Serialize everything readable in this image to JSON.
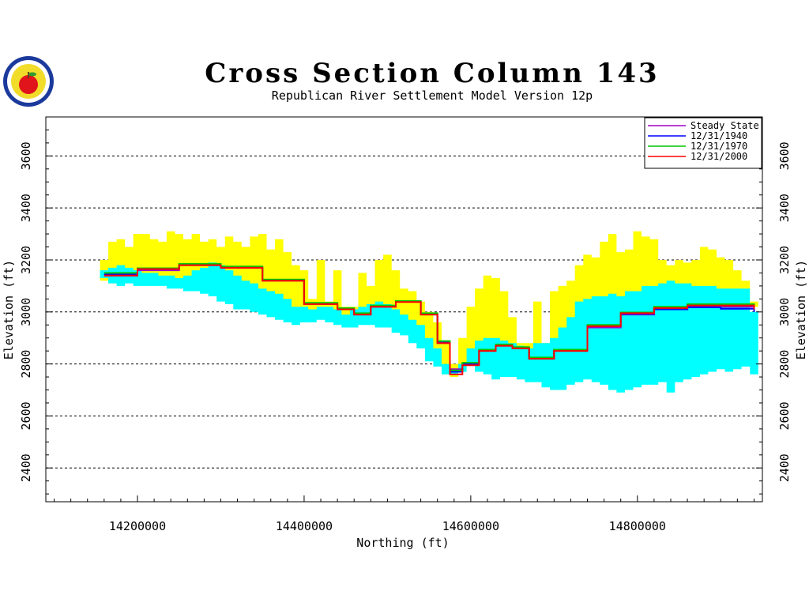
{
  "chart_data": {
    "type": "area",
    "title": "Cross Section Column 143",
    "subtitle": "Republican River Settlement Model Version 12p",
    "xlabel": "Northing (ft)",
    "ylabel": "Elevation (ft)",
    "xlim": [
      14090000,
      14950000
    ],
    "ylim": [
      2270,
      3750
    ],
    "x_ticks": [
      14200000,
      14400000,
      14600000,
      14800000
    ],
    "x_tick_labels": [
      "14200000",
      "14400000",
      "14600000",
      "14800000"
    ],
    "y_ticks": [
      2400,
      2600,
      2800,
      3000,
      3200,
      3400,
      3600
    ],
    "y_tick_labels": [
      "2400",
      "2600",
      "2800",
      "3000",
      "3200",
      "3400",
      "3600"
    ],
    "grid": "dashed horizontal",
    "legend_position": "top-right",
    "layers": [
      {
        "name": "Upper layer",
        "color": "#ffff00",
        "x": [
          14160000,
          14170000,
          14180000,
          14190000,
          14200000,
          14210000,
          14220000,
          14230000,
          14240000,
          14250000,
          14260000,
          14270000,
          14280000,
          14290000,
          14300000,
          14310000,
          14320000,
          14330000,
          14340000,
          14350000,
          14360000,
          14370000,
          14380000,
          14390000,
          14400000,
          14410000,
          14420000,
          14430000,
          14440000,
          14450000,
          14460000,
          14470000,
          14480000,
          14490000,
          14500000,
          14510000,
          14520000,
          14530000,
          14540000,
          14550000,
          14560000,
          14570000,
          14580000,
          14590000,
          14600000,
          14610000,
          14620000,
          14630000,
          14640000,
          14650000,
          14660000,
          14670000,
          14680000,
          14690000,
          14700000,
          14710000,
          14720000,
          14730000,
          14740000,
          14750000,
          14760000,
          14770000,
          14780000,
          14790000,
          14800000,
          14810000,
          14820000,
          14830000,
          14840000,
          14850000,
          14860000,
          14870000,
          14880000,
          14890000,
          14900000,
          14910000,
          14920000,
          14930000,
          14940000
        ],
        "top": [
          3200,
          3270,
          3280,
          3250,
          3300,
          3300,
          3280,
          3270,
          3310,
          3300,
          3280,
          3300,
          3270,
          3280,
          3250,
          3290,
          3270,
          3250,
          3290,
          3300,
          3240,
          3280,
          3230,
          3180,
          3160,
          3050,
          3200,
          3040,
          3160,
          3020,
          3020,
          3150,
          3100,
          3200,
          3220,
          3160,
          3090,
          3080,
          3040,
          3000,
          2960,
          2880,
          2800,
          2900,
          3020,
          3090,
          3140,
          3130,
          3080,
          2980,
          2880,
          2880,
          3040,
          2880,
          3080,
          3100,
          3120,
          3180,
          3220,
          3210,
          3270,
          3300,
          3230,
          3240,
          3310,
          3290,
          3280,
          3200,
          3180,
          3200,
          3190,
          3200,
          3250,
          3240,
          3210,
          3200,
          3160,
          3120,
          3040
        ],
        "bottom": [
          3120,
          3110,
          3140,
          3160,
          3150,
          3140,
          3130,
          3130,
          3110,
          3100,
          3100,
          3100,
          3090,
          3100,
          3080,
          3070,
          3050,
          3050,
          3030,
          3020,
          3010,
          3000,
          2990,
          2990,
          3000,
          2990,
          3000,
          2990,
          2980,
          2970,
          2980,
          2990,
          2980,
          2990,
          3010,
          2990,
          2960,
          2930,
          2900,
          2860,
          2820,
          2760,
          2750,
          2780,
          2800,
          2790,
          2810,
          2800,
          2810,
          2800,
          2790,
          2800,
          2820,
          2820,
          2850,
          2880,
          2900,
          2920,
          2960,
          3000,
          3000,
          3020,
          3010,
          3020,
          3030,
          3040,
          3060,
          3060,
          3070,
          3060,
          3070,
          3080,
          3080,
          3080,
          3070,
          3060,
          3060,
          3060,
          3020
        ]
      },
      {
        "name": "Lower layer",
        "color": "#00ffff",
        "x": [
          14160000,
          14170000,
          14180000,
          14190000,
          14200000,
          14210000,
          14220000,
          14230000,
          14240000,
          14250000,
          14260000,
          14270000,
          14280000,
          14290000,
          14300000,
          14310000,
          14320000,
          14330000,
          14340000,
          14350000,
          14360000,
          14370000,
          14380000,
          14390000,
          14400000,
          14410000,
          14420000,
          14430000,
          14440000,
          14450000,
          14460000,
          14470000,
          14480000,
          14490000,
          14500000,
          14510000,
          14520000,
          14530000,
          14540000,
          14550000,
          14560000,
          14570000,
          14580000,
          14590000,
          14600000,
          14610000,
          14620000,
          14630000,
          14640000,
          14650000,
          14660000,
          14670000,
          14680000,
          14690000,
          14700000,
          14710000,
          14720000,
          14730000,
          14740000,
          14750000,
          14760000,
          14770000,
          14780000,
          14790000,
          14800000,
          14810000,
          14820000,
          14830000,
          14840000,
          14850000,
          14860000,
          14870000,
          14880000,
          14890000,
          14900000,
          14910000,
          14920000,
          14930000,
          14940000
        ],
        "top": [
          3160,
          3170,
          3180,
          3170,
          3160,
          3150,
          3150,
          3140,
          3140,
          3130,
          3140,
          3160,
          3170,
          3190,
          3180,
          3160,
          3140,
          3120,
          3110,
          3090,
          3080,
          3070,
          3050,
          3020,
          3020,
          3010,
          3020,
          3020,
          3010,
          2990,
          3010,
          3020,
          3030,
          3040,
          3030,
          3010,
          2990,
          2970,
          2950,
          2900,
          2860,
          2800,
          2780,
          2800,
          2860,
          2890,
          2900,
          2900,
          2890,
          2880,
          2870,
          2860,
          2880,
          2880,
          2900,
          2940,
          2980,
          3040,
          3050,
          3060,
          3060,
          3070,
          3060,
          3080,
          3080,
          3100,
          3100,
          3110,
          3120,
          3110,
          3110,
          3100,
          3100,
          3100,
          3090,
          3090,
          3090,
          3090,
          3000
        ],
        "bottom": [
          3130,
          3110,
          3100,
          3110,
          3100,
          3100,
          3100,
          3100,
          3090,
          3090,
          3080,
          3080,
          3070,
          3060,
          3040,
          3030,
          3010,
          3010,
          3000,
          2990,
          2980,
          2970,
          2960,
          2950,
          2960,
          2960,
          2970,
          2960,
          2950,
          2940,
          2940,
          2950,
          2950,
          2940,
          2940,
          2920,
          2910,
          2880,
          2860,
          2810,
          2790,
          2760,
          2760,
          2770,
          2800,
          2770,
          2760,
          2740,
          2750,
          2750,
          2740,
          2730,
          2730,
          2710,
          2700,
          2700,
          2720,
          2730,
          2740,
          2730,
          2720,
          2700,
          2690,
          2700,
          2710,
          2720,
          2720,
          2730,
          2690,
          2730,
          2740,
          2750,
          2760,
          2770,
          2780,
          2770,
          2780,
          2790,
          2760
        ]
      }
    ],
    "series": [
      {
        "name": "Steady State",
        "color": "#a000c8",
        "x": [
          14160000,
          14200000,
          14250000,
          14300000,
          14350000,
          14400000,
          14440000,
          14460000,
          14480000,
          14510000,
          14540000,
          14560000,
          14575000,
          14590000,
          14610000,
          14630000,
          14650000,
          14670000,
          14700000,
          14740000,
          14780000,
          14820000,
          14860000,
          14900000,
          14940000
        ],
        "values": [
          3140,
          3160,
          3180,
          3170,
          3120,
          3030,
          3010,
          2990,
          3020,
          3040,
          2990,
          2880,
          2780,
          2800,
          2850,
          2870,
          2860,
          2820,
          2850,
          2940,
          2990,
          3010,
          3020,
          3020,
          3005
        ]
      },
      {
        "name": "12/31/1940",
        "color": "#0000ff",
        "x": [
          14160000,
          14200000,
          14250000,
          14300000,
          14350000,
          14400000,
          14440000,
          14460000,
          14480000,
          14510000,
          14540000,
          14560000,
          14575000,
          14590000,
          14610000,
          14630000,
          14650000,
          14670000,
          14700000,
          14740000,
          14780000,
          14820000,
          14860000,
          14900000,
          14940000
        ],
        "values": [
          3145,
          3165,
          3182,
          3172,
          3122,
          3032,
          3012,
          2992,
          3022,
          3040,
          2992,
          2885,
          2770,
          2800,
          2852,
          2872,
          2862,
          2822,
          2852,
          2945,
          2992,
          3010,
          3018,
          3012,
          3000
        ]
      },
      {
        "name": "12/31/1970",
        "color": "#00c800",
        "x": [
          14160000,
          14200000,
          14250000,
          14300000,
          14350000,
          14400000,
          14440000,
          14460000,
          14480000,
          14510000,
          14540000,
          14560000,
          14575000,
          14590000,
          14610000,
          14630000,
          14650000,
          14670000,
          14700000,
          14740000,
          14780000,
          14820000,
          14860000,
          14900000,
          14940000
        ],
        "values": [
          3150,
          3168,
          3185,
          3175,
          3125,
          3035,
          3015,
          2995,
          3025,
          3042,
          2995,
          2888,
          2775,
          2805,
          2855,
          2875,
          2865,
          2825,
          2855,
          2950,
          2998,
          3020,
          3030,
          3030,
          3015
        ]
      },
      {
        "name": "12/31/2000",
        "color": "#ff0000",
        "x": [
          14160000,
          14200000,
          14250000,
          14300000,
          14350000,
          14400000,
          14440000,
          14460000,
          14480000,
          14510000,
          14540000,
          14560000,
          14575000,
          14590000,
          14610000,
          14630000,
          14650000,
          14670000,
          14700000,
          14740000,
          14780000,
          14820000,
          14860000,
          14900000,
          14940000
        ],
        "values": [
          3140,
          3165,
          3180,
          3170,
          3120,
          3030,
          3010,
          2990,
          3020,
          3038,
          2990,
          2880,
          2760,
          2795,
          2850,
          2870,
          2860,
          2820,
          2850,
          2945,
          2995,
          3015,
          3025,
          3025,
          3010
        ]
      }
    ]
  }
}
